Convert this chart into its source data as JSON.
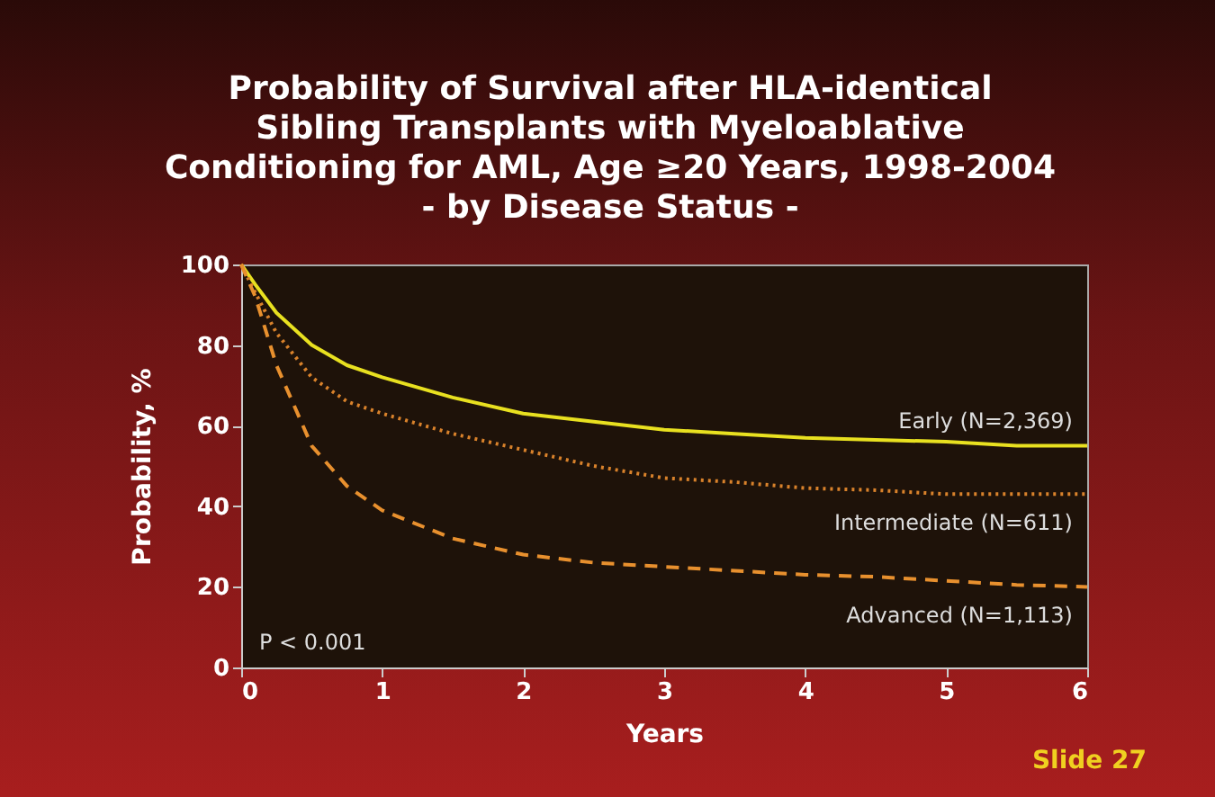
{
  "chart_data": {
    "type": "line",
    "title": [
      "Probability of Survival after HLA-identical",
      "Sibling Transplants with Myeloablative",
      "Conditioning for AML, Age ≥20 Years, 1998-2004",
      "- by Disease Status -"
    ],
    "xlabel": "Years",
    "ylabel": "Probability, %",
    "x": [
      0,
      0.1,
      0.25,
      0.5,
      0.75,
      1,
      1.5,
      2,
      2.5,
      3,
      3.5,
      4,
      4.5,
      5,
      5.5,
      6
    ],
    "series": [
      {
        "name": "Early (N=2,369)",
        "color": "#e8e020",
        "line_style": "solid",
        "values": [
          100,
          95,
          88,
          80,
          75,
          72,
          67,
          63,
          61,
          59,
          58,
          57,
          56.5,
          56,
          55,
          55
        ]
      },
      {
        "name": "Intermediate (N=611)",
        "color": "#d9822b",
        "line_style": "dotted",
        "values": [
          100,
          93,
          83,
          72,
          66,
          63,
          58,
          54,
          50,
          47,
          46,
          44.5,
          44,
          43,
          43,
          43
        ]
      },
      {
        "name": "Advanced (N=1,113)",
        "color": "#e8902e",
        "line_style": "dashed",
        "values": [
          100,
          92,
          75,
          55,
          45,
          39,
          32,
          28,
          26,
          25,
          24,
          23,
          22.5,
          21.5,
          20.5,
          20
        ]
      }
    ],
    "xlim": [
      0,
      6
    ],
    "xticks": [
      0,
      1,
      2,
      3,
      4,
      5,
      6
    ],
    "ylim": [
      0,
      100
    ],
    "yticks": [
      0,
      20,
      40,
      60,
      80,
      100
    ],
    "grid": false,
    "annotations": [
      "P < 0.001",
      "Slide 27"
    ]
  }
}
